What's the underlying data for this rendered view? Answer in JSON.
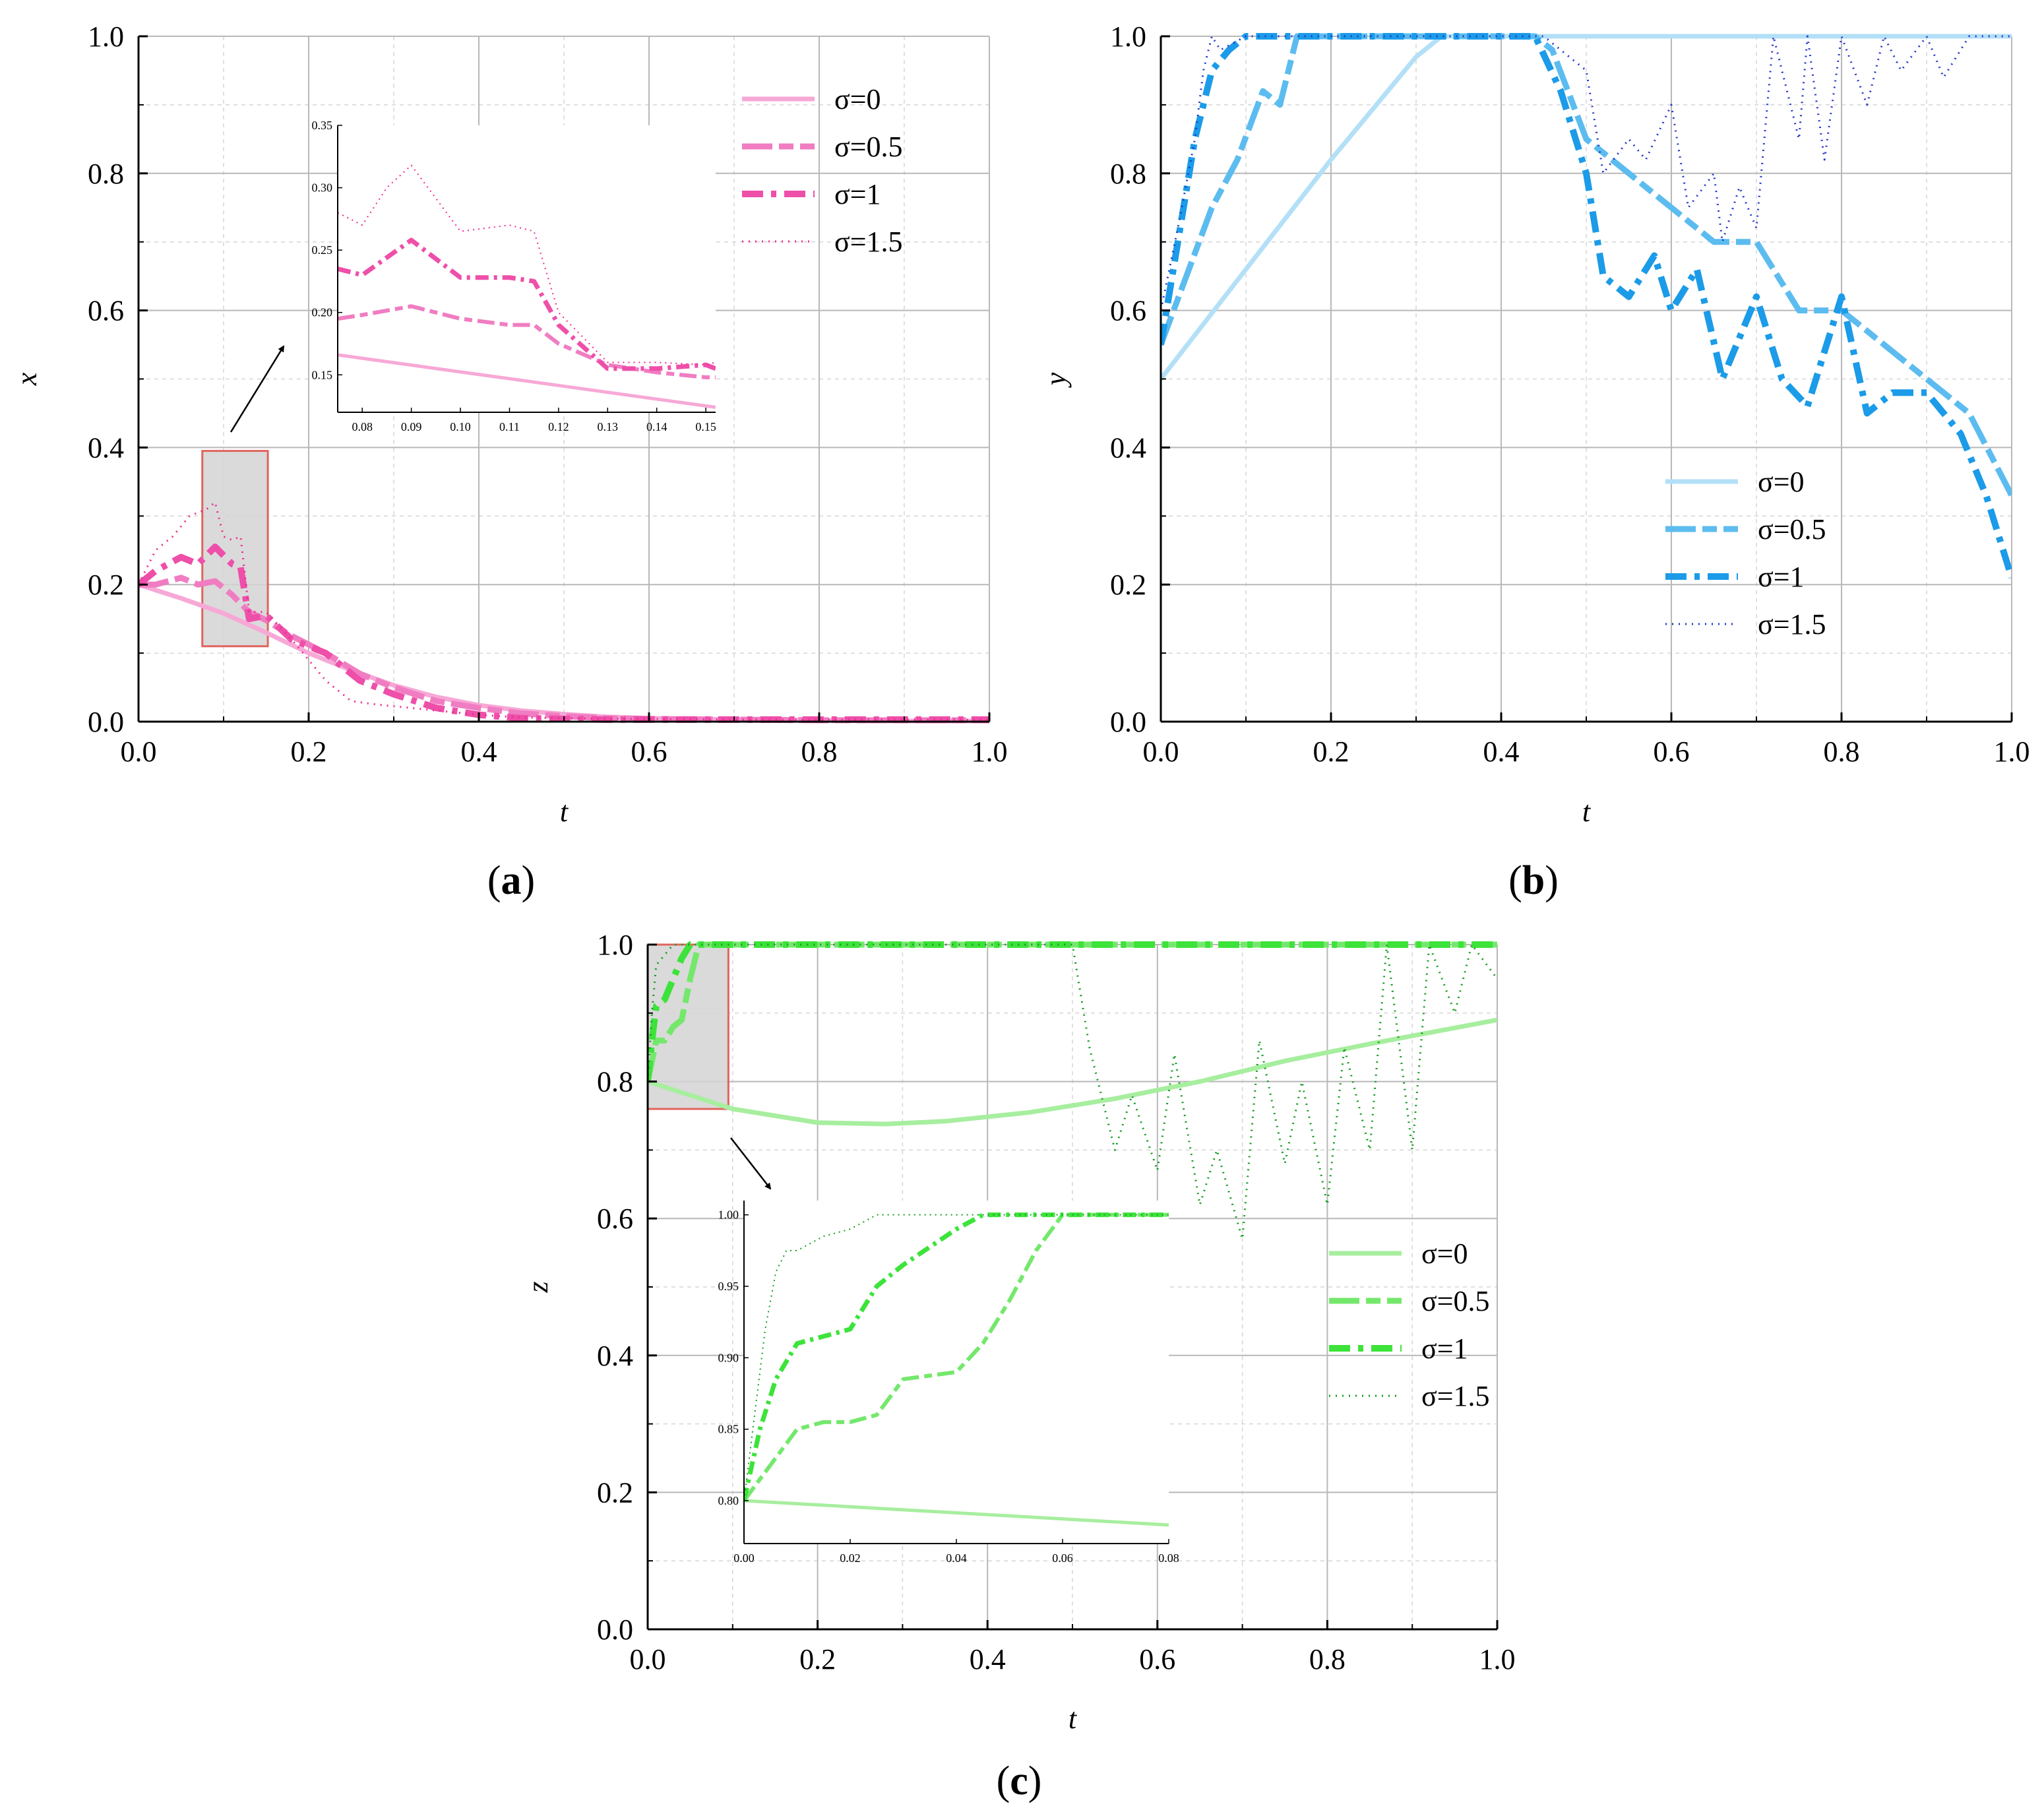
{
  "chart_data": [
    {
      "type": "line",
      "panel": "(a)",
      "xlabel": "t",
      "ylabel": "x",
      "xlim": [
        0,
        1
      ],
      "ylim": [
        0,
        1
      ],
      "xticks": [
        "0.0",
        "0.2",
        "0.4",
        "0.6",
        "0.8",
        "1.0"
      ],
      "yticks": [
        "0.0",
        "0.2",
        "0.4",
        "0.6",
        "0.8",
        "1.0"
      ],
      "legend_position": "top-right",
      "colors": [
        "#f7a8d6",
        "#f07dc2",
        "#ee4fa9",
        "#ec2a90"
      ],
      "series": [
        {
          "name": "σ=0",
          "x": [
            0,
            0.05,
            0.1,
            0.15,
            0.2,
            0.25,
            0.3,
            0.35,
            0.4,
            0.45,
            0.5,
            0.55,
            0.6,
            0.7,
            0.8,
            0.9,
            1.0
          ],
          "y": [
            0.2,
            0.18,
            0.158,
            0.13,
            0.1,
            0.075,
            0.053,
            0.036,
            0.024,
            0.016,
            0.011,
            0.007,
            0.005,
            0.003,
            0.002,
            0.001,
            0.001
          ]
        },
        {
          "name": "σ=0.5",
          "x": [
            0,
            0.02,
            0.05,
            0.07,
            0.09,
            0.11,
            0.13,
            0.15,
            0.18,
            0.22,
            0.26,
            0.3,
            0.35,
            0.4,
            0.45,
            0.5,
            0.55,
            0.6,
            0.7,
            0.8,
            0.9,
            1.0
          ],
          "y": [
            0.2,
            0.2,
            0.21,
            0.2,
            0.205,
            0.185,
            0.16,
            0.148,
            0.125,
            0.1,
            0.07,
            0.05,
            0.03,
            0.02,
            0.012,
            0.008,
            0.005,
            0.004,
            0.003,
            0.002,
            0.002,
            0.002
          ]
        },
        {
          "name": "σ=1",
          "x": [
            0,
            0.02,
            0.05,
            0.07,
            0.09,
            0.11,
            0.12,
            0.13,
            0.15,
            0.18,
            0.22,
            0.26,
            0.3,
            0.35,
            0.4,
            0.45,
            0.5,
            0.55,
            0.6,
            0.7,
            0.8,
            0.9,
            1.0
          ],
          "y": [
            0.2,
            0.22,
            0.24,
            0.23,
            0.255,
            0.23,
            0.225,
            0.15,
            0.155,
            0.12,
            0.1,
            0.06,
            0.04,
            0.02,
            0.01,
            0.005,
            0.004,
            0.003,
            0.003,
            0.003,
            0.003,
            0.003,
            0.003
          ]
        },
        {
          "name": "σ=1.5",
          "x": [
            0,
            0.02,
            0.04,
            0.06,
            0.08,
            0.09,
            0.1,
            0.11,
            0.12,
            0.13,
            0.15,
            0.18,
            0.22,
            0.25,
            0.28,
            0.32,
            0.36,
            0.4,
            0.45,
            0.5,
            0.55,
            0.6,
            0.7,
            0.8,
            0.9,
            1.0
          ],
          "y": [
            0.2,
            0.25,
            0.27,
            0.3,
            0.31,
            0.32,
            0.27,
            0.265,
            0.27,
            0.16,
            0.16,
            0.12,
            0.06,
            0.03,
            0.025,
            0.02,
            0.015,
            0.01,
            0.006,
            0.005,
            0.004,
            0.004,
            0.003,
            0.003,
            0.003,
            0.003
          ]
        }
      ],
      "inset": {
        "xlim": [
          0.075,
          0.152
        ],
        "ylim": [
          0.12,
          0.35
        ],
        "xticks": [
          "0.08",
          "0.09",
          "0.10",
          "0.11",
          "0.12",
          "0.13",
          "0.14",
          "0.15"
        ],
        "yticks": [
          "0.15",
          "0.20",
          "0.25",
          "0.30",
          "0.35"
        ],
        "series": [
          {
            "name": "σ=0",
            "x": [
              0.075,
              0.152
            ],
            "y": [
              0.166,
              0.124
            ]
          },
          {
            "name": "σ=0.5",
            "x": [
              0.075,
              0.08,
              0.09,
              0.1,
              0.11,
              0.115,
              0.12,
              0.13,
              0.14,
              0.15,
              0.152
            ],
            "y": [
              0.195,
              0.198,
              0.205,
              0.195,
              0.19,
              0.19,
              0.175,
              0.158,
              0.152,
              0.148,
              0.148
            ]
          },
          {
            "name": "σ=1",
            "x": [
              0.075,
              0.08,
              0.09,
              0.1,
              0.11,
              0.115,
              0.12,
              0.13,
              0.14,
              0.15,
              0.152
            ],
            "y": [
              0.235,
              0.23,
              0.258,
              0.228,
              0.228,
              0.225,
              0.19,
              0.155,
              0.155,
              0.158,
              0.155
            ]
          },
          {
            "name": "σ=1.5",
            "x": [
              0.075,
              0.08,
              0.085,
              0.09,
              0.1,
              0.11,
              0.115,
              0.12,
              0.13,
              0.14,
              0.15,
              0.152
            ],
            "y": [
              0.28,
              0.27,
              0.3,
              0.318,
              0.265,
              0.27,
              0.265,
              0.2,
              0.16,
              0.16,
              0.158,
              0.16
            ]
          }
        ]
      }
    },
    {
      "type": "line",
      "panel": "(b)",
      "xlabel": "t",
      "ylabel": "y",
      "xlim": [
        0,
        1
      ],
      "ylim": [
        0,
        1
      ],
      "xticks": [
        "0.0",
        "0.2",
        "0.4",
        "0.6",
        "0.8",
        "1.0"
      ],
      "yticks": [
        "0.0",
        "0.2",
        "0.4",
        "0.6",
        "0.8",
        "1.0"
      ],
      "legend_position": "bottom-right",
      "colors": [
        "#b3e0f7",
        "#5cbcef",
        "#1b9be8",
        "#2338c8"
      ],
      "series": [
        {
          "name": "σ=0",
          "x": [
            0,
            0.1,
            0.2,
            0.3,
            0.33,
            0.5,
            0.7,
            1.0
          ],
          "y": [
            0.5,
            0.66,
            0.82,
            0.97,
            1.0,
            1.0,
            1.0,
            1.0
          ]
        },
        {
          "name": "σ=0.5",
          "x": [
            0,
            0.03,
            0.06,
            0.09,
            0.12,
            0.14,
            0.16,
            0.3,
            0.44,
            0.46,
            0.5,
            0.55,
            0.6,
            0.65,
            0.7,
            0.75,
            0.8,
            0.85,
            0.9,
            0.95,
            1.0
          ],
          "y": [
            0.55,
            0.65,
            0.75,
            0.82,
            0.92,
            0.9,
            1.0,
            1.0,
            1.0,
            0.98,
            0.85,
            0.8,
            0.75,
            0.7,
            0.7,
            0.6,
            0.6,
            0.55,
            0.5,
            0.45,
            0.33
          ]
        },
        {
          "name": "σ=1",
          "x": [
            0,
            0.02,
            0.04,
            0.06,
            0.08,
            0.1,
            0.2,
            0.44,
            0.47,
            0.5,
            0.52,
            0.55,
            0.58,
            0.6,
            0.63,
            0.66,
            0.7,
            0.73,
            0.76,
            0.8,
            0.83,
            0.86,
            0.9,
            0.94,
            0.97,
            1.0
          ],
          "y": [
            0.55,
            0.7,
            0.85,
            0.95,
            0.98,
            1.0,
            1.0,
            1.0,
            0.92,
            0.8,
            0.65,
            0.62,
            0.68,
            0.6,
            0.66,
            0.5,
            0.62,
            0.5,
            0.46,
            0.62,
            0.45,
            0.48,
            0.48,
            0.42,
            0.33,
            0.21
          ]
        },
        {
          "name": "σ=1.5",
          "x": [
            0,
            0.02,
            0.04,
            0.05,
            0.06,
            0.07,
            0.1,
            0.45,
            0.5,
            0.52,
            0.55,
            0.57,
            0.6,
            0.62,
            0.65,
            0.66,
            0.68,
            0.7,
            0.72,
            0.75,
            0.76,
            0.78,
            0.8,
            0.83,
            0.85,
            0.87,
            0.9,
            0.92,
            0.95,
            1.0
          ],
          "y": [
            0.6,
            0.72,
            0.85,
            0.95,
            1.0,
            0.98,
            1.0,
            1.0,
            0.95,
            0.8,
            0.85,
            0.82,
            0.9,
            0.75,
            0.8,
            0.7,
            0.78,
            0.72,
            1.0,
            0.85,
            1.0,
            0.82,
            1.0,
            0.9,
            1.0,
            0.95,
            1.0,
            0.94,
            1.0,
            1.0
          ]
        }
      ]
    },
    {
      "type": "line",
      "panel": "(c)",
      "xlabel": "t",
      "ylabel": "z",
      "xlim": [
        0,
        1
      ],
      "ylim": [
        0,
        1
      ],
      "xticks": [
        "0.0",
        "0.2",
        "0.4",
        "0.6",
        "0.8",
        "1.0"
      ],
      "yticks": [
        "0.0",
        "0.2",
        "0.4",
        "0.6",
        "0.8",
        "1.0"
      ],
      "legend_position": "right",
      "colors": [
        "#a7ee9f",
        "#74e86c",
        "#3de33a",
        "#139b1f"
      ],
      "series": [
        {
          "name": "σ=0",
          "x": [
            0,
            0.1,
            0.2,
            0.28,
            0.35,
            0.45,
            0.55,
            0.65,
            0.75,
            0.85,
            1.0
          ],
          "y": [
            0.8,
            0.76,
            0.74,
            0.738,
            0.742,
            0.755,
            0.775,
            0.8,
            0.83,
            0.855,
            0.89
          ]
        },
        {
          "name": "σ=0.5",
          "x": [
            0,
            0.01,
            0.02,
            0.03,
            0.04,
            0.05,
            0.06,
            0.07,
            0.2,
            0.5,
            1.0
          ],
          "y": [
            0.8,
            0.86,
            0.86,
            0.88,
            0.89,
            0.95,
            1.0,
            1.0,
            1.0,
            1.0,
            1.0
          ]
        },
        {
          "name": "σ=1",
          "x": [
            0,
            0.005,
            0.01,
            0.015,
            0.02,
            0.03,
            0.04,
            0.05,
            0.2,
            0.5,
            1.0
          ],
          "y": [
            0.8,
            0.86,
            0.91,
            0.915,
            0.92,
            0.95,
            0.98,
            1.0,
            1.0,
            1.0,
            1.0
          ]
        },
        {
          "name": "σ=1.5",
          "x": [
            0,
            0.005,
            0.01,
            0.02,
            0.03,
            0.05,
            0.2,
            0.5,
            0.52,
            0.55,
            0.57,
            0.6,
            0.62,
            0.65,
            0.67,
            0.7,
            0.72,
            0.75,
            0.77,
            0.8,
            0.82,
            0.85,
            0.87,
            0.9,
            0.92,
            0.95,
            0.97,
            1.0
          ],
          "y": [
            0.8,
            0.9,
            0.97,
            0.985,
            1.0,
            1.0,
            1.0,
            1.0,
            0.85,
            0.7,
            0.78,
            0.67,
            0.84,
            0.62,
            0.7,
            0.57,
            0.86,
            0.68,
            0.8,
            0.62,
            0.85,
            0.7,
            1.0,
            0.7,
            1.0,
            0.9,
            1.0,
            0.95
          ]
        }
      ],
      "inset": {
        "xlim": [
          0,
          0.08
        ],
        "ylim": [
          0.77,
          1.01
        ],
        "xticks": [
          "0.00",
          "0.02",
          "0.04",
          "0.06",
          "0.08"
        ],
        "yticks": [
          "0.80",
          "0.85",
          "0.90",
          "0.95",
          "1.00"
        ],
        "series": [
          {
            "name": "σ=0",
            "x": [
              0,
              0.08
            ],
            "y": [
              0.8,
              0.783
            ]
          },
          {
            "name": "σ=0.5",
            "x": [
              0,
              0.01,
              0.015,
              0.02,
              0.025,
              0.03,
              0.04,
              0.045,
              0.05,
              0.055,
              0.06,
              0.08
            ],
            "y": [
              0.8,
              0.85,
              0.855,
              0.855,
              0.86,
              0.885,
              0.89,
              0.91,
              0.94,
              0.975,
              1.0,
              1.0
            ]
          },
          {
            "name": "σ=1",
            "x": [
              0,
              0.003,
              0.006,
              0.01,
              0.015,
              0.02,
              0.025,
              0.03,
              0.04,
              0.045,
              0.05,
              0.08
            ],
            "y": [
              0.8,
              0.85,
              0.885,
              0.91,
              0.915,
              0.92,
              0.95,
              0.965,
              0.99,
              1.0,
              1.0,
              1.0
            ]
          },
          {
            "name": "σ=1.5",
            "x": [
              0,
              0.002,
              0.004,
              0.006,
              0.008,
              0.01,
              0.015,
              0.02,
              0.025,
              0.03,
              0.08
            ],
            "y": [
              0.8,
              0.86,
              0.92,
              0.96,
              0.975,
              0.975,
              0.985,
              0.99,
              1.0,
              1.0,
              1.0
            ]
          }
        ]
      }
    }
  ]
}
